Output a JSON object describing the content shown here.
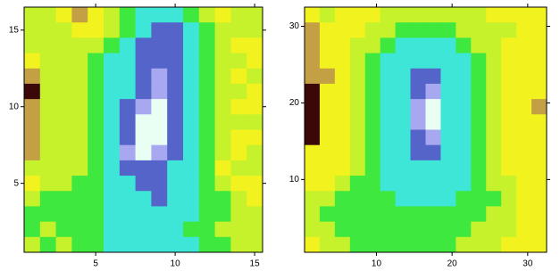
{
  "chart_data": [
    {
      "type": "heatmap",
      "colors": [
        "#3a0808",
        "#c4a044",
        "#f2f21e",
        "#c6f22c",
        "#3ee83e",
        "#3ee6d8",
        "#5464c8",
        "#a8a8f0",
        "#eafff4"
      ],
      "x": [
        1,
        2,
        3,
        4,
        5,
        6,
        7,
        8,
        9,
        10,
        11,
        12,
        13,
        14,
        15
      ],
      "y": [
        16,
        15,
        14,
        13,
        12,
        11,
        10,
        9,
        8,
        7,
        6,
        5,
        4,
        3,
        2,
        1
      ],
      "z": [
        [
          3,
          3,
          2,
          1,
          2,
          3,
          4,
          5,
          5,
          5,
          4,
          3,
          2,
          3,
          3
        ],
        [
          3,
          3,
          3,
          2,
          2,
          3,
          4,
          5,
          6,
          6,
          5,
          4,
          3,
          3,
          3
        ],
        [
          3,
          3,
          3,
          3,
          3,
          4,
          5,
          6,
          6,
          6,
          5,
          4,
          3,
          2,
          2
        ],
        [
          2,
          3,
          3,
          3,
          4,
          5,
          5,
          6,
          6,
          6,
          5,
          4,
          3,
          3,
          2
        ],
        [
          1,
          3,
          3,
          3,
          4,
          5,
          5,
          6,
          7,
          6,
          5,
          4,
          3,
          2,
          3
        ],
        [
          0,
          3,
          3,
          3,
          4,
          5,
          5,
          6,
          7,
          6,
          5,
          4,
          3,
          3,
          2
        ],
        [
          1,
          3,
          3,
          3,
          4,
          5,
          6,
          7,
          8,
          6,
          5,
          4,
          3,
          2,
          2
        ],
        [
          1,
          3,
          3,
          3,
          4,
          5,
          6,
          8,
          8,
          6,
          5,
          4,
          3,
          3,
          3
        ],
        [
          1,
          3,
          3,
          3,
          4,
          5,
          6,
          8,
          8,
          6,
          5,
          4,
          3,
          2,
          2
        ],
        [
          1,
          3,
          3,
          3,
          4,
          5,
          7,
          8,
          7,
          6,
          5,
          4,
          3,
          2,
          3
        ],
        [
          3,
          3,
          3,
          3,
          4,
          5,
          6,
          6,
          6,
          5,
          5,
          4,
          2,
          3,
          3
        ],
        [
          2,
          3,
          3,
          4,
          4,
          5,
          5,
          6,
          6,
          5,
          5,
          4,
          3,
          2,
          2
        ],
        [
          3,
          4,
          4,
          4,
          4,
          5,
          5,
          5,
          6,
          5,
          5,
          4,
          4,
          3,
          2
        ],
        [
          4,
          4,
          4,
          4,
          4,
          5,
          5,
          5,
          5,
          5,
          5,
          4,
          4,
          3,
          3
        ],
        [
          4,
          3,
          4,
          4,
          4,
          5,
          5,
          5,
          5,
          5,
          4,
          4,
          3,
          3,
          3
        ],
        [
          3,
          4,
          3,
          4,
          4,
          5,
          5,
          5,
          5,
          5,
          5,
          4,
          4,
          3,
          3
        ]
      ],
      "xlim": [
        0.5,
        15.5
      ],
      "ylim": [
        0.5,
        16.5
      ],
      "xticks": [
        5,
        10,
        15
      ],
      "yticks": [
        5,
        10,
        15
      ]
    },
    {
      "type": "heatmap",
      "colors": [
        "#3a0808",
        "#c4a044",
        "#f2f21e",
        "#c6f22c",
        "#3ee83e",
        "#3ee6d8",
        "#5464c8",
        "#a8a8f0",
        "#eafff4"
      ],
      "x": [
        1.5,
        3.5,
        5.5,
        7.5,
        9.5,
        11.5,
        13.5,
        15.5,
        17.5,
        19.5,
        21.5,
        23.5,
        25.5,
        27.5,
        29.5,
        31.5
      ],
      "y": [
        31.5,
        29.5,
        27.5,
        25.5,
        23.5,
        21.5,
        19.5,
        17.5,
        15.5,
        13.5,
        11.5,
        9.5,
        7.5,
        5.5,
        3.5,
        1.5
      ],
      "z": [
        [
          2,
          3,
          2,
          2,
          2,
          3,
          3,
          3,
          3,
          3,
          3,
          3,
          2,
          2,
          2,
          2
        ],
        [
          1,
          2,
          2,
          2,
          3,
          3,
          4,
          4,
          4,
          4,
          3,
          3,
          3,
          3,
          2,
          2
        ],
        [
          1,
          2,
          2,
          3,
          3,
          4,
          5,
          5,
          5,
          5,
          4,
          3,
          3,
          2,
          2,
          2
        ],
        [
          1,
          2,
          2,
          3,
          4,
          5,
          5,
          5,
          5,
          5,
          5,
          4,
          3,
          2,
          2,
          2
        ],
        [
          1,
          1,
          2,
          3,
          4,
          5,
          5,
          6,
          6,
          5,
          5,
          4,
          3,
          2,
          2,
          2
        ],
        [
          0,
          2,
          2,
          3,
          4,
          5,
          5,
          6,
          7,
          5,
          5,
          4,
          3,
          2,
          2,
          2
        ],
        [
          0,
          2,
          2,
          3,
          4,
          5,
          5,
          7,
          8,
          5,
          5,
          4,
          3,
          2,
          2,
          1
        ],
        [
          0,
          2,
          2,
          3,
          4,
          5,
          5,
          7,
          8,
          5,
          5,
          4,
          3,
          2,
          2,
          2
        ],
        [
          0,
          2,
          2,
          3,
          4,
          5,
          5,
          6,
          7,
          5,
          5,
          4,
          3,
          2,
          2,
          2
        ],
        [
          2,
          2,
          2,
          3,
          4,
          5,
          5,
          6,
          6,
          5,
          5,
          4,
          3,
          2,
          2,
          2
        ],
        [
          2,
          2,
          2,
          3,
          4,
          5,
          5,
          5,
          5,
          5,
          5,
          4,
          3,
          2,
          2,
          2
        ],
        [
          2,
          2,
          3,
          4,
          4,
          5,
          5,
          5,
          5,
          5,
          5,
          4,
          3,
          3,
          2,
          2
        ],
        [
          3,
          3,
          4,
          4,
          4,
          4,
          5,
          5,
          5,
          5,
          4,
          4,
          4,
          3,
          2,
          2
        ],
        [
          3,
          4,
          4,
          4,
          4,
          4,
          4,
          4,
          4,
          4,
          4,
          4,
          3,
          3,
          2,
          2
        ],
        [
          3,
          3,
          4,
          4,
          4,
          4,
          4,
          4,
          4,
          4,
          4,
          3,
          3,
          3,
          2,
          2
        ],
        [
          2,
          3,
          3,
          4,
          4,
          4,
          4,
          4,
          4,
          4,
          3,
          3,
          3,
          2,
          2,
          2
        ]
      ],
      "xlim": [
        0.5,
        32.5
      ],
      "ylim": [
        0.5,
        32.5
      ],
      "xticks": [
        10,
        20,
        30
      ],
      "yticks": [
        10,
        20,
        30
      ]
    }
  ]
}
